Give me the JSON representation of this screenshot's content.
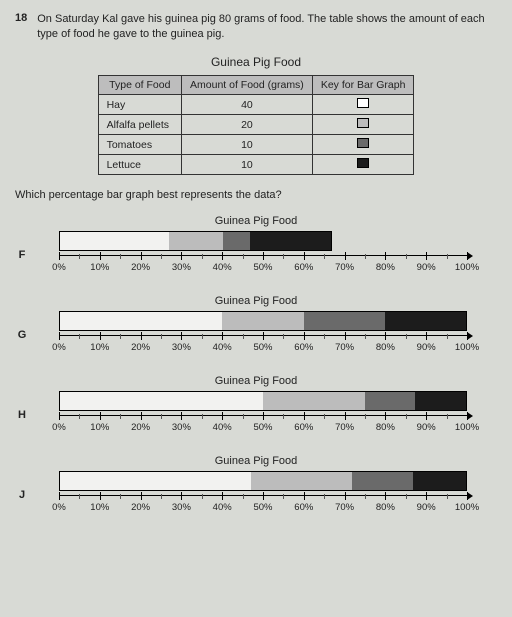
{
  "question": {
    "number": "18",
    "text": "On Saturday Kal gave his guinea pig 80 grams of food. The table shows the amount of each type of food he gave to the guinea pig."
  },
  "table": {
    "caption": "Guinea Pig Food",
    "headers": {
      "c1": "Type of\nFood",
      "c2": "Amount of Food\n(grams)",
      "c3": "Key for\nBar Graph"
    },
    "rows": [
      {
        "food": "Hay",
        "grams": "40",
        "key_color": "#ffffff"
      },
      {
        "food": "Alfalfa pellets",
        "grams": "20",
        "key_color": "#bcbcbc"
      },
      {
        "food": "Tomatoes",
        "grams": "10",
        "key_color": "#6a6a6a"
      },
      {
        "food": "Lettuce",
        "grams": "10",
        "key_color": "#1c1c1c"
      }
    ]
  },
  "sub_question": "Which percentage bar graph best represents the data?",
  "axis": {
    "ticks": [
      0,
      10,
      20,
      30,
      40,
      50,
      60,
      70,
      80,
      90,
      100
    ],
    "labels": [
      "0%",
      "10%",
      "20%",
      "30%",
      "40%",
      "50%",
      "60%",
      "70%",
      "80%",
      "90%",
      "100%"
    ]
  },
  "options": [
    {
      "letter": "F",
      "title": "Guinea Pig Food",
      "total_percent": 67,
      "segments": [
        {
          "pct": 40,
          "color": "#f2f2f0"
        },
        {
          "pct": 20,
          "color": "#bcbcbc"
        },
        {
          "pct": 10,
          "color": "#6a6a6a"
        },
        {
          "pct": 30,
          "color": "#1c1c1c"
        }
      ]
    },
    {
      "letter": "G",
      "title": "Guinea Pig Food",
      "total_percent": 100,
      "segments": [
        {
          "pct": 40,
          "color": "#f2f2f0"
        },
        {
          "pct": 20,
          "color": "#bcbcbc"
        },
        {
          "pct": 20,
          "color": "#6a6a6a"
        },
        {
          "pct": 20,
          "color": "#1c1c1c"
        }
      ]
    },
    {
      "letter": "H",
      "title": "Guinea Pig Food",
      "total_percent": 100,
      "segments": [
        {
          "pct": 50,
          "color": "#f2f2f0"
        },
        {
          "pct": 25,
          "color": "#bcbcbc"
        },
        {
          "pct": 12.5,
          "color": "#6a6a6a"
        },
        {
          "pct": 12.5,
          "color": "#1c1c1c"
        }
      ]
    },
    {
      "letter": "J",
      "title": "Guinea Pig Food",
      "total_percent": 100,
      "segments": [
        {
          "pct": 47,
          "color": "#f2f2f0"
        },
        {
          "pct": 25,
          "color": "#bcbcbc"
        },
        {
          "pct": 15,
          "color": "#6a6a6a"
        },
        {
          "pct": 13,
          "color": "#1c1c1c"
        }
      ]
    }
  ]
}
